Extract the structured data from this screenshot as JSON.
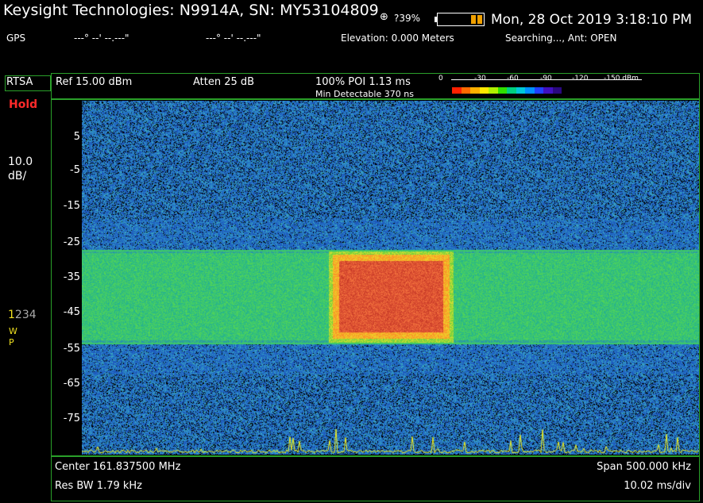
{
  "header": {
    "title": "Keysight Technologies: N9914A, SN: MY53104809",
    "gps_icon": "gps-target-icon",
    "battery_percent": "?39%",
    "datetime": "Mon, 28 Oct 2019 3:18:10 PM"
  },
  "status": {
    "gps_label": "GPS",
    "latitude": "---° --' --.---\"",
    "longitude": "---° --' --.---\"",
    "elevation": "Elevation: 0.000 Meters",
    "searching": "Searching..., Ant: OPEN"
  },
  "side": {
    "mode": "RTSA",
    "hold": "Hold",
    "scale_value": "10.0",
    "scale_unit": "dB/",
    "trace_active": "1",
    "trace_others": "234",
    "trace_w": "W",
    "trace_p": "P"
  },
  "settings": {
    "ref": "Ref 15.00 dBm",
    "atten": "Atten 25 dB",
    "poi": "100% POI 1.13 ms",
    "min_detectable": "Min Detectable 370 ns",
    "colorbar_labels": [
      "0",
      "-30",
      "-60",
      "-90",
      "-120",
      "-150 dBm"
    ],
    "colorbar_colors": [
      "#ff2000",
      "#ff6a00",
      "#ffb000",
      "#ffe800",
      "#b0f000",
      "#30e000",
      "#00d080",
      "#00c8d8",
      "#0090ff",
      "#2040ff",
      "#4010c0",
      "#2a0880"
    ]
  },
  "plot": {
    "y_labels": [
      "5",
      "-5",
      "-15",
      "-25",
      "-35",
      "-45",
      "-55",
      "-65",
      "-75"
    ]
  },
  "footer": {
    "center": "Center 161.837500 MHz",
    "span": "Span 500.000 kHz",
    "res_bw": "Res BW 1.79 kHz",
    "time_div": "10.02 ms/div"
  }
}
